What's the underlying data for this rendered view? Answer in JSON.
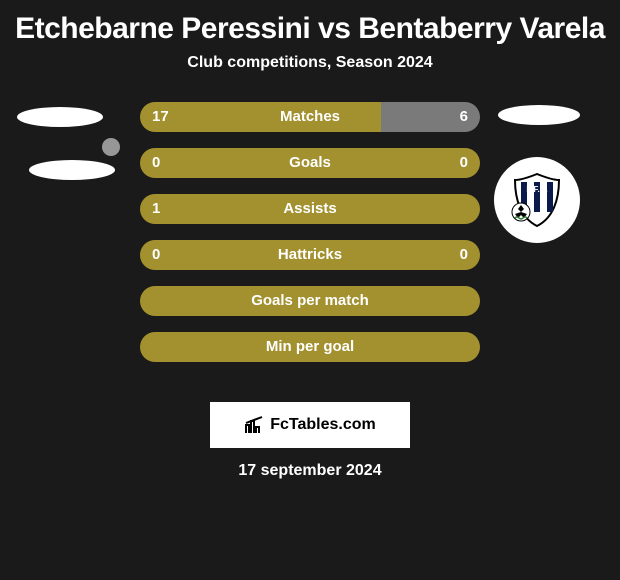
{
  "title": "Etchebarne Peressini vs Bentaberry Varela",
  "subtitle": "Club competitions, Season 2024",
  "colors": {
    "gold": "#a3912f",
    "grey": "#7a7a7a",
    "bg": "#1a1a1a",
    "white": "#ffffff"
  },
  "rows": [
    {
      "label": "Matches",
      "left": "17",
      "right": "6",
      "left_pct": 71,
      "show_vals": true
    },
    {
      "label": "Goals",
      "left": "0",
      "right": "0",
      "left_pct": 100,
      "show_vals": true,
      "full_gold": true
    },
    {
      "label": "Assists",
      "left": "1",
      "right": "",
      "left_pct": 100,
      "show_vals": true,
      "full_gold": true
    },
    {
      "label": "Hattricks",
      "left": "0",
      "right": "0",
      "left_pct": 100,
      "show_vals": true,
      "full_gold": true
    },
    {
      "label": "Goals per match",
      "left": "",
      "right": "",
      "left_pct": 100,
      "show_vals": false,
      "full_gold": true
    },
    {
      "label": "Min per goal",
      "left": "",
      "right": "",
      "left_pct": 100,
      "show_vals": false,
      "full_gold": true
    }
  ],
  "footer_brand": "FcTables.com",
  "footer_date": "17 september 2024",
  "club_logo": {
    "letters": "L.F.C.",
    "stripe_color": "#0a1a4a",
    "bg": "#ffffff"
  }
}
